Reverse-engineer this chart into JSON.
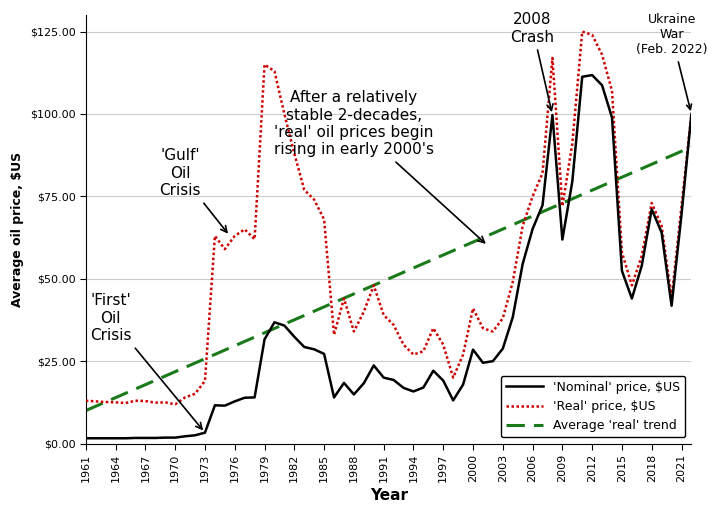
{
  "title": "",
  "xlabel": "Year",
  "ylabel": "Average oil price, $US",
  "background_color": "#ffffff",
  "years": [
    1961,
    1962,
    1963,
    1964,
    1965,
    1966,
    1967,
    1968,
    1969,
    1970,
    1971,
    1972,
    1973,
    1974,
    1975,
    1976,
    1977,
    1978,
    1979,
    1980,
    1981,
    1982,
    1983,
    1984,
    1985,
    1986,
    1987,
    1988,
    1989,
    1990,
    1991,
    1992,
    1993,
    1994,
    1995,
    1996,
    1997,
    1998,
    1999,
    2000,
    2001,
    2002,
    2003,
    2004,
    2005,
    2006,
    2007,
    2008,
    2009,
    2010,
    2011,
    2012,
    2013,
    2014,
    2015,
    2016,
    2017,
    2018,
    2019,
    2020,
    2021,
    2022
  ],
  "nominal": [
    1.6,
    1.6,
    1.6,
    1.6,
    1.6,
    1.7,
    1.7,
    1.7,
    1.8,
    1.8,
    2.2,
    2.5,
    3.3,
    11.6,
    11.5,
    12.8,
    13.9,
    14.0,
    31.6,
    36.8,
    35.8,
    32.4,
    29.3,
    28.6,
    27.2,
    14.0,
    18.4,
    14.9,
    18.3,
    23.7,
    20.0,
    19.3,
    16.9,
    15.8,
    17.0,
    22.1,
    19.1,
    13.1,
    17.9,
    28.5,
    24.5,
    25.0,
    28.8,
    38.3,
    54.5,
    65.1,
    72.3,
    99.7,
    61.9,
    79.5,
    111.3,
    111.8,
    108.7,
    98.9,
    52.4,
    44.0,
    54.0,
    71.1,
    64.0,
    41.8,
    69.5,
    100.0
  ],
  "real": [
    13.0,
    12.8,
    12.6,
    12.5,
    12.3,
    13.0,
    12.9,
    12.4,
    12.5,
    11.9,
    14.0,
    15.1,
    19.0,
    63.0,
    59.0,
    63.0,
    65.0,
    62.0,
    115.0,
    113.0,
    100.0,
    88.0,
    77.0,
    74.0,
    68.0,
    33.0,
    44.0,
    34.0,
    40.0,
    48.0,
    39.0,
    36.0,
    30.0,
    27.0,
    28.0,
    35.0,
    30.0,
    20.0,
    27.0,
    41.0,
    35.0,
    34.0,
    38.0,
    49.0,
    66.0,
    75.0,
    82.0,
    117.0,
    72.0,
    91.0,
    125.0,
    124.0,
    118.0,
    107.0,
    58.0,
    48.0,
    57.0,
    73.0,
    66.0,
    44.0,
    72.0,
    100.0
  ],
  "trend_years": [
    1961,
    2022
  ],
  "trend_values": [
    10.0,
    90.0
  ],
  "nominal_color": "#000000",
  "real_color": "#cc0000",
  "trend_color": "#1a7a1a",
  "ylim": [
    0,
    130
  ],
  "yticks": [
    0,
    25,
    50,
    75,
    100,
    125
  ],
  "ytick_labels": [
    "$0.00",
    "$25.00",
    "$50.00",
    "$75.00",
    "$100.00",
    "$125.00"
  ],
  "xtick_years": [
    1961,
    1964,
    1967,
    1970,
    1973,
    1976,
    1979,
    1982,
    1985,
    1988,
    1991,
    1994,
    1997,
    2000,
    2003,
    2006,
    2009,
    2012,
    2015,
    2018,
    2021
  ],
  "grid_color": "#cccccc",
  "annot_fontsize": 11,
  "annot_small_fontsize": 9
}
